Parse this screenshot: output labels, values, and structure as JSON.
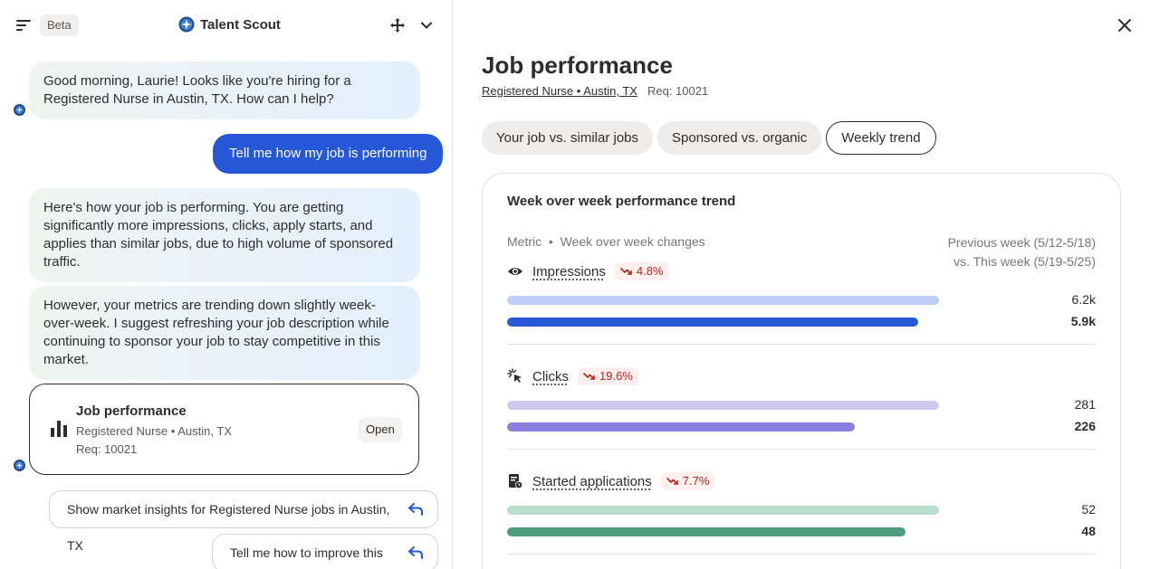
{
  "header": {
    "beta": "Beta",
    "brand": "Talent Scout"
  },
  "chat": {
    "msg1": "Good morning, Laurie! Looks like you're hiring for a Registered Nurse in Austin, TX. How can I help?",
    "user_msg": "Tell me how my job is performing",
    "msg2": "Here's how your job is performing. You are getting significantly more impressions, clicks, apply starts, and applies than similar jobs, due to high volume of sponsored traffic.",
    "msg3": "However, your metrics are trending down slightly week-over-week. I suggest refreshing your job description while continuing to sponsor your job to stay competitive in this market.",
    "card": {
      "title": "Job performance",
      "subtitle": "Registered Nurse • Austin, TX",
      "req": "Req: 10021",
      "open": "Open"
    },
    "suggestions": [
      "Show market insights for Registered Nurse jobs in Austin, TX",
      "Tell me how to improve this job"
    ]
  },
  "detail": {
    "title": "Job performance",
    "job_title": "Registered Nurse",
    "location": "Austin, TX",
    "req": "Req: 10021",
    "tabs": [
      "Your job vs. similar jobs",
      "Sponsored vs. organic",
      "Weekly trend"
    ],
    "active_tab": "Weekly trend",
    "panel_title": "Week over week performance trend",
    "metric_header": "Metric",
    "metric_header_sub": "Week over week changes",
    "compare_line1": "Previous week (5/12-5/18)",
    "compare_line2": "vs. This week (5/19-5/25)",
    "metrics": [
      {
        "name": "Impressions",
        "icon": "eye-icon",
        "delta": "4.8%",
        "prev_label": "6.2k",
        "curr_label": "5.9k",
        "prev": 6200,
        "curr": 5900,
        "prev_color": "#bcd0f7",
        "curr_color": "#2557d6"
      },
      {
        "name": "Clicks",
        "icon": "click-icon",
        "delta": "19.6%",
        "prev_label": "281",
        "curr_label": "226",
        "prev": 281,
        "curr": 226,
        "prev_color": "#cfc9f0",
        "curr_color": "#8b7fe0"
      },
      {
        "name": "Started applications",
        "icon": "application-icon",
        "delta": "7.7%",
        "prev_label": "52",
        "curr_label": "48",
        "prev": 52,
        "curr": 48,
        "prev_color": "#b9dfcc",
        "curr_color": "#4a9e7e"
      }
    ]
  },
  "colors": {
    "user_bubble": "#2557d6",
    "delta_text": "#b3261e",
    "delta_bg": "#fcefee"
  }
}
